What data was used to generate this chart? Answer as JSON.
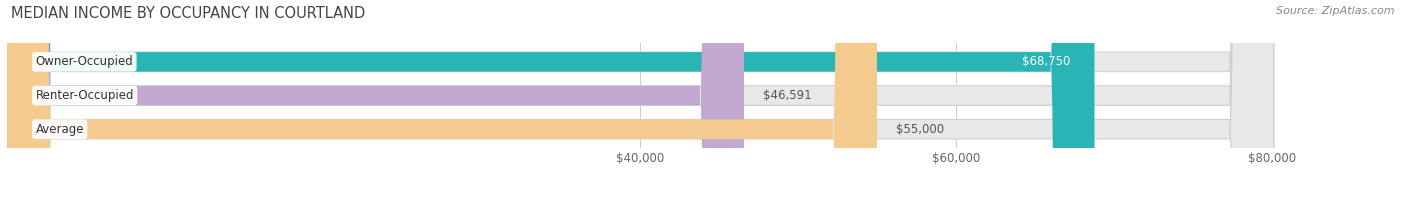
{
  "title": "MEDIAN INCOME BY OCCUPANCY IN COURTLAND",
  "source": "Source: ZipAtlas.com",
  "categories": [
    "Owner-Occupied",
    "Renter-Occupied",
    "Average"
  ],
  "values": [
    68750,
    46591,
    55000
  ],
  "labels": [
    "$68,750",
    "$46,591",
    "$55,000"
  ],
  "bar_colors": [
    "#29b5b5",
    "#c3a8d1",
    "#f5ca8e"
  ],
  "x_min": 0,
  "x_max": 88000,
  "x_ticks": [
    40000,
    60000,
    80000
  ],
  "x_tick_labels": [
    "$40,000",
    "$60,000",
    "$80,000"
  ],
  "bar_bg_color": "#e8e8e8",
  "bar_bg_edge_color": "#d0d0d0",
  "title_fontsize": 10.5,
  "label_fontsize": 8.5,
  "tick_fontsize": 8.5,
  "source_fontsize": 8,
  "bar_height": 0.58,
  "label_inside_color": [
    "#ffffff",
    "#555555",
    "#555555"
  ],
  "label_inside": [
    true,
    false,
    false
  ]
}
